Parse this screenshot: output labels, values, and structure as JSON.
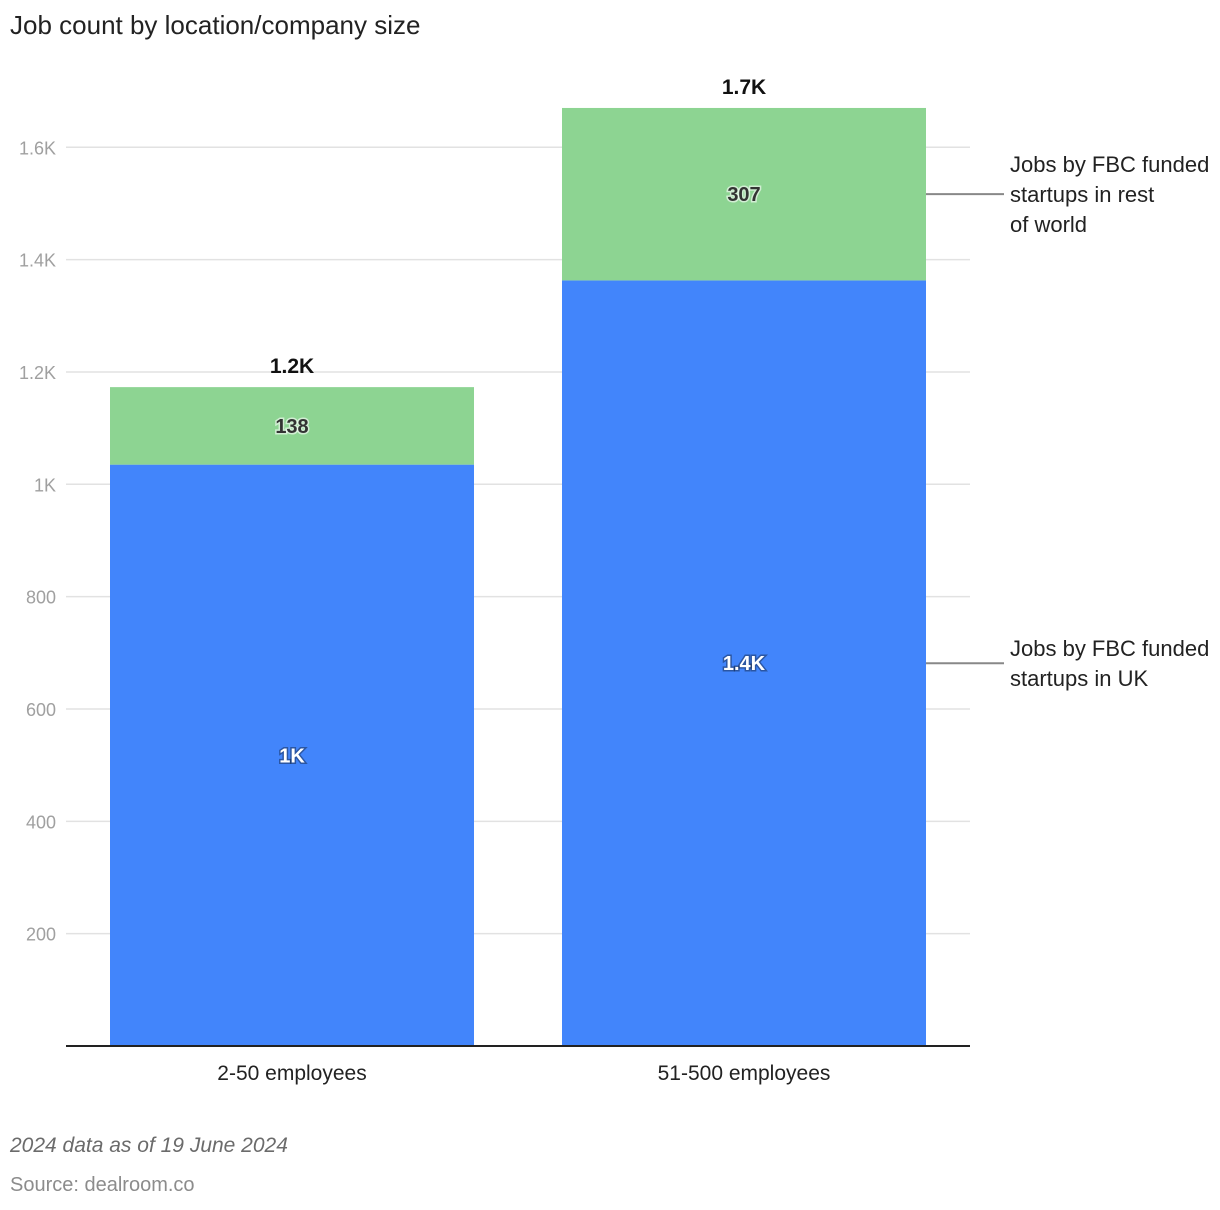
{
  "chart_data": {
    "type": "bar",
    "stacked": true,
    "title": "Job count by location/company size",
    "categories": [
      "2-50 employees",
      "51-500 employees"
    ],
    "series": [
      {
        "name": "Jobs by FBC funded startups in UK",
        "values": [
          1035,
          1363
        ],
        "labels": [
          "1K",
          "1.4K"
        ],
        "color": "#4285fb"
      },
      {
        "name": "Jobs by FBC funded startups in rest of world",
        "values": [
          138,
          307
        ],
        "labels": [
          "138",
          "307"
        ],
        "color": "#8dd492"
      }
    ],
    "totals": [
      "1.2K",
      "1.7K"
    ],
    "y_ticks": [
      {
        "value": 200,
        "label": "200"
      },
      {
        "value": 400,
        "label": "400"
      },
      {
        "value": 600,
        "label": "600"
      },
      {
        "value": 800,
        "label": "800"
      },
      {
        "value": 1000,
        "label": "1K"
      },
      {
        "value": 1200,
        "label": "1.2K"
      },
      {
        "value": 1400,
        "label": "1.4K"
      },
      {
        "value": 1600,
        "label": "1.6K"
      }
    ],
    "ylim": [
      0,
      1700
    ],
    "grid": true,
    "legend_placement": "right, labels next to last bar"
  },
  "footer": {
    "note": "2024 data as of 19 June 2024",
    "source": "Source: dealroom.co"
  }
}
